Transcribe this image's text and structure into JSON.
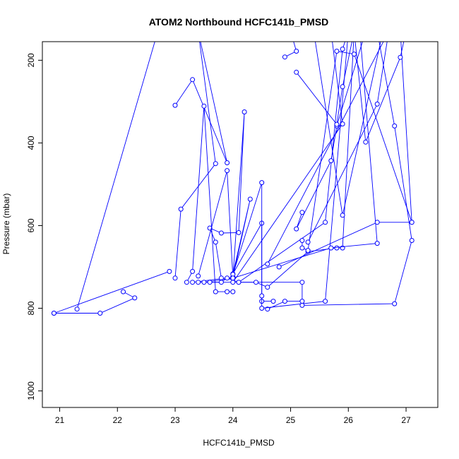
{
  "chart_data": {
    "type": "line",
    "title": "ATOM2 Northbound HCFC141b_PMSD",
    "xlabel": "HCFC141b_PMSD",
    "ylabel": "Pressure (mbar)",
    "xlim": [
      20.7,
      27.55
    ],
    "ylim": [
      1040,
      155
    ],
    "y_reversed": true,
    "x_ticks": [
      21,
      22,
      23,
      24,
      25,
      26,
      27
    ],
    "y_ticks": [
      200,
      400,
      600,
      800,
      1000
    ],
    "series_color": "#0000ff",
    "marker": "open-circle",
    "grid": false,
    "legend": "none",
    "series": [
      {
        "points": [
          [
            20.9,
            812
          ],
          [
            21.7,
            812
          ],
          [
            22.3,
            775
          ],
          [
            22.1,
            760
          ]
        ]
      },
      {
        "points": [
          [
            20.9,
            812
          ],
          [
            22.9,
            711
          ]
        ]
      },
      {
        "points": [
          [
            21.3,
            802
          ],
          [
            22.7,
            130
          ]
        ]
      },
      {
        "points": [
          [
            23.0,
            727
          ],
          [
            23.1,
            560
          ],
          [
            23.7,
            450
          ],
          [
            23.4,
            130
          ]
        ]
      },
      {
        "points": [
          [
            23.0,
            309
          ],
          [
            23.3,
            247
          ],
          [
            23.9,
            448
          ],
          [
            23.4,
            130
          ]
        ]
      },
      {
        "points": [
          [
            23.2,
            737
          ],
          [
            23.3,
            711
          ],
          [
            23.5,
            311
          ],
          [
            23.7,
            760
          ],
          [
            23.9,
            760
          ],
          [
            24.0,
            760
          ]
        ]
      },
      {
        "points": [
          [
            23.3,
            737
          ],
          [
            24.0,
            725
          ],
          [
            24.2,
            325
          ],
          [
            24.1,
            617
          ],
          [
            23.8,
            618
          ],
          [
            23.6,
            606
          ],
          [
            23.7,
            640
          ],
          [
            23.8,
            727
          ]
        ]
      },
      {
        "points": [
          [
            23.4,
            722
          ],
          [
            23.9,
            467
          ],
          [
            24.0,
            725
          ],
          [
            24.3,
            536
          ],
          [
            24.0,
            717
          ],
          [
            24.5,
            594
          ],
          [
            24.5,
            783
          ],
          [
            24.7,
            783
          ]
        ]
      },
      {
        "points": [
          [
            23.4,
            737
          ],
          [
            25.2,
            737
          ],
          [
            25.2,
            783
          ],
          [
            24.9,
            783
          ],
          [
            24.6,
            802
          ]
        ]
      },
      {
        "points": [
          [
            23.5,
            737
          ],
          [
            24.0,
            727
          ],
          [
            24.0,
            718
          ],
          [
            24.5,
            496
          ],
          [
            24.5,
            770
          ],
          [
            24.5,
            800
          ],
          [
            25.6,
            783
          ],
          [
            26.0,
            130
          ]
        ]
      },
      {
        "points": [
          [
            23.6,
            737
          ],
          [
            23.8,
            737
          ],
          [
            23.9,
            727
          ],
          [
            24.1,
            737
          ],
          [
            24.4,
            737
          ],
          [
            24.6,
            749
          ],
          [
            25.3,
            663
          ],
          [
            25.8,
            654
          ],
          [
            25.9,
            654
          ],
          [
            26.1,
            130
          ]
        ]
      },
      {
        "points": [
          [
            24.0,
            737
          ],
          [
            25.9,
            354
          ],
          [
            25.7,
            130
          ]
        ]
      },
      {
        "points": [
          [
            24.0,
            727
          ],
          [
            25.7,
            654
          ],
          [
            26.5,
            643
          ],
          [
            26.2,
            130
          ]
        ]
      },
      {
        "points": [
          [
            24.1,
            737
          ],
          [
            25.6,
            592
          ],
          [
            25.9,
            173
          ],
          [
            26.0,
            130
          ]
        ]
      },
      {
        "points": [
          [
            24.6,
            693
          ],
          [
            26.7,
            130
          ]
        ]
      },
      {
        "points": [
          [
            24.8,
            700
          ],
          [
            26.5,
            592
          ],
          [
            27.1,
            592
          ],
          [
            26.9,
            130
          ]
        ]
      },
      {
        "points": [
          [
            25.2,
            793
          ],
          [
            26.8,
            789
          ],
          [
            27.1,
            636
          ],
          [
            26.8,
            359
          ],
          [
            26.5,
            130
          ]
        ]
      },
      {
        "points": [
          [
            25.2,
            636
          ],
          [
            25.2,
            654
          ],
          [
            25.3,
            660
          ],
          [
            25.8,
            178
          ],
          [
            26.1,
            185
          ],
          [
            27.1,
            592
          ]
        ]
      },
      {
        "points": [
          [
            25.2,
            568
          ],
          [
            25.1,
            608
          ],
          [
            25.7,
            443
          ],
          [
            25.8,
            359
          ],
          [
            26.3,
            130
          ]
        ]
      },
      {
        "points": [
          [
            24.9,
            192
          ],
          [
            25.1,
            178
          ],
          [
            25.0,
            130
          ]
        ]
      },
      {
        "points": [
          [
            25.1,
            229
          ],
          [
            25.8,
            355
          ],
          [
            25.9,
            264
          ],
          [
            26.1,
            130
          ]
        ]
      },
      {
        "points": [
          [
            25.4,
            130
          ],
          [
            25.9,
            575
          ],
          [
            26.6,
            130
          ]
        ]
      },
      {
        "points": [
          [
            26.1,
            130
          ],
          [
            26.3,
            398
          ],
          [
            26.9,
            193
          ],
          [
            27.0,
            130
          ]
        ]
      },
      {
        "points": [
          [
            25.3,
            640
          ],
          [
            26.5,
            306
          ],
          [
            26.7,
            130
          ]
        ]
      }
    ]
  }
}
